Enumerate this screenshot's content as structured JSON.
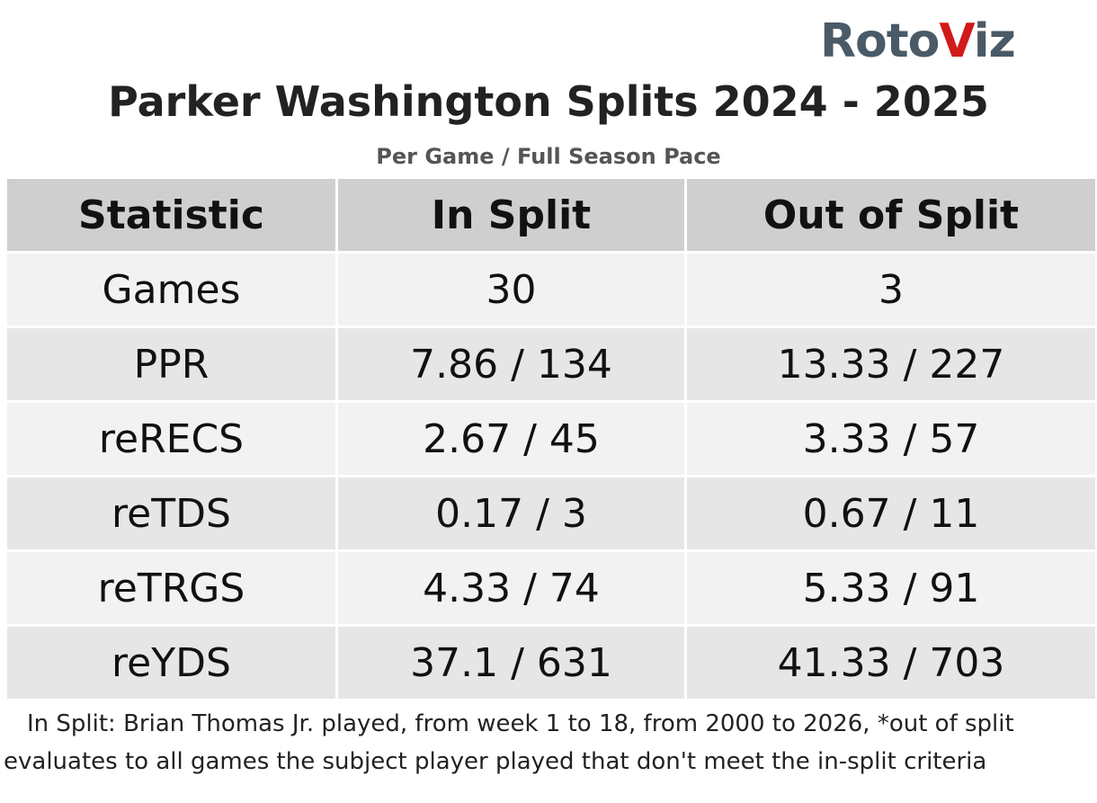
{
  "logo": {
    "prefix": "Roto",
    "v": "V",
    "suffix": "iz",
    "color_main": "#4a5a66",
    "color_accent": "#d11a1a"
  },
  "chart_data": {
    "type": "table",
    "title": "Parker Washington Splits 2024 - 2025",
    "subtitle": "Per Game / Full Season Pace",
    "columns": [
      "Statistic",
      "In Split",
      "Out of Split"
    ],
    "rows": [
      [
        "Games",
        "30",
        "3"
      ],
      [
        "PPR",
        "7.86 / 134",
        "13.33 / 227"
      ],
      [
        "reRECS",
        "2.67 / 45",
        "3.33 / 57"
      ],
      [
        "reTDS",
        "0.17 / 3",
        "0.67 / 11"
      ],
      [
        "reTRGS",
        "4.33 / 74",
        "5.33 / 91"
      ],
      [
        "reYDS",
        "37.1 / 631",
        "41.33 / 703"
      ]
    ]
  },
  "footnote": "In Split: Brian Thomas Jr. played, from week 1 to 18, from 2000 to 2026,  *out of split evaluates to all games the subject player played that don't meet the in-split criteria"
}
